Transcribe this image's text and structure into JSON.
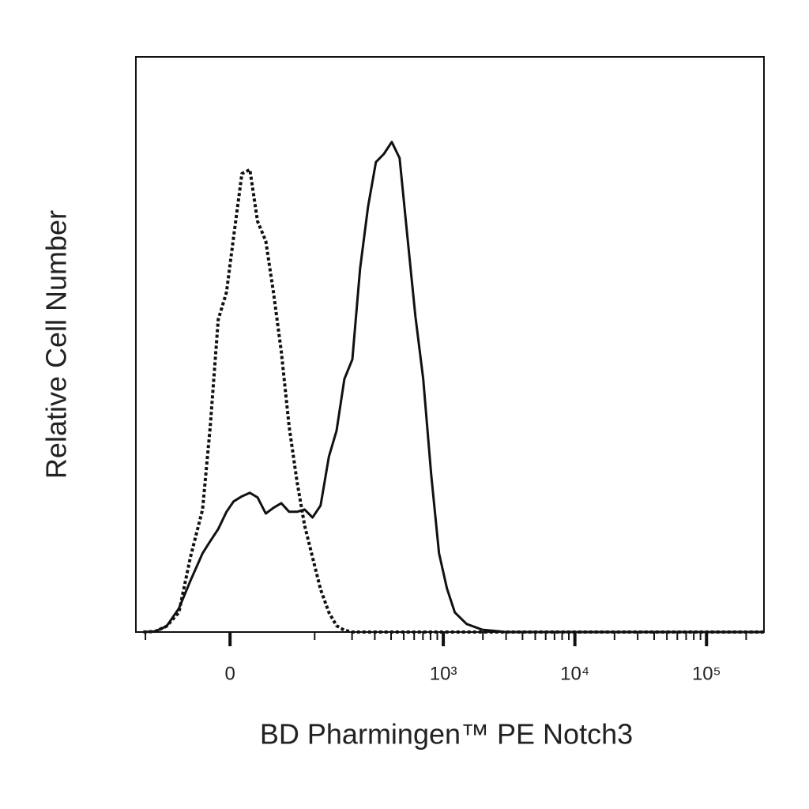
{
  "chart_data": {
    "type": "line",
    "xlabel": "BD Pharmingen™ PE Notch3",
    "ylabel": "Relative Cell Number",
    "xscale": "biexponential",
    "xlim": [
      -120,
      273200
    ],
    "ylim": [
      0,
      100
    ],
    "xticks": [
      0,
      {
        "value": 1000,
        "label": "10³"
      },
      {
        "value": 10000,
        "label": "10⁴"
      },
      {
        "value": 100000,
        "label": "10⁵"
      }
    ],
    "xminorticks": [
      -100,
      100,
      200,
      300,
      400,
      500,
      600,
      700,
      800,
      900,
      2000,
      3000,
      4000,
      5000,
      6000,
      7000,
      8000,
      9000,
      20000,
      30000,
      40000,
      50000,
      60000,
      70000,
      80000,
      90000,
      200000
    ],
    "x": [
      -104,
      -83,
      -65,
      -49,
      -36,
      -24,
      -17,
      -10,
      -3,
      3,
      10,
      17,
      24,
      32,
      40,
      49,
      59,
      70,
      82,
      96,
      112,
      131,
      151,
      174,
      201,
      231,
      266,
      306,
      352,
      405,
      465,
      533,
      613,
      704,
      808,
      928,
      1066,
      1224,
      1503,
      1982,
      3000,
      6860,
      27270,
      273200
    ],
    "series": [
      {
        "color": "#111111",
        "dash": "solid",
        "values": [
          0,
          0.1,
          1.0,
          4.1,
          8.9,
          13.7,
          15.8,
          17.9,
          20.9,
          22.7,
          23.6,
          24.2,
          23.4,
          20.6,
          21.6,
          22.4,
          20.9,
          20.9,
          21.3,
          19.9,
          22.0,
          30.5,
          35.0,
          44.0,
          47.4,
          63.2,
          73.9,
          81.7,
          83.1,
          85.2,
          82.4,
          68.7,
          54.9,
          44.0,
          27.5,
          13.7,
          7.6,
          3.4,
          1.4,
          0.4,
          0,
          0,
          0,
          0
        ]
      },
      {
        "color": "#111111",
        "dash": "dotted",
        "values": [
          0,
          0.1,
          1.0,
          3.4,
          13.0,
          21.3,
          35.7,
          54.3,
          59.1,
          68.7,
          79.7,
          80.4,
          71.4,
          68.0,
          59.1,
          48.8,
          35.7,
          26.1,
          18.5,
          13.0,
          7.4,
          3.4,
          1.1,
          0.3,
          0,
          0,
          0,
          0,
          0,
          0,
          0,
          0,
          0,
          0,
          0,
          0,
          0,
          0,
          0,
          0,
          0,
          0,
          0,
          0
        ]
      }
    ]
  }
}
